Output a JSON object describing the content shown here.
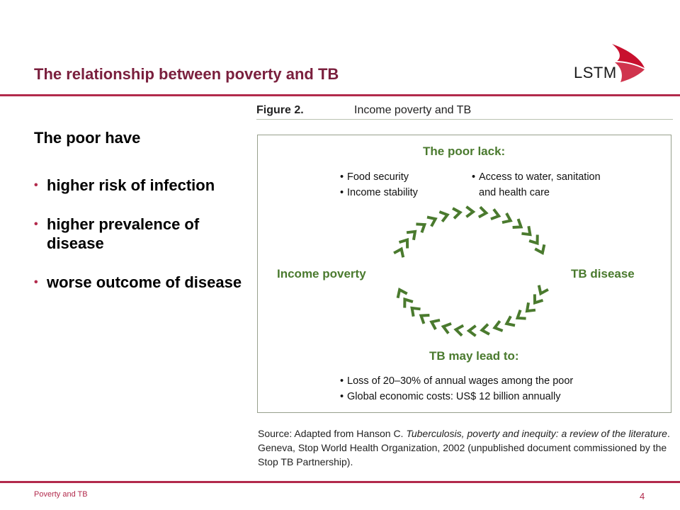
{
  "slide": {
    "title": "The relationship between poverty and TB",
    "logo_text": "LSTM",
    "footer": "Poverty and TB",
    "page_number": "4"
  },
  "left": {
    "lead": "The poor have",
    "bullets": [
      "higher risk of infection",
      "higher prevalence of disease",
      "worse outcome of disease"
    ]
  },
  "figure": {
    "label": "Figure 2.",
    "title": "Income poverty and TB",
    "poor_lack": {
      "heading": "The poor lack:",
      "left_items": [
        "Food security",
        "Income stability"
      ],
      "right_items": [
        "Access to water, sanitation",
        "and health care"
      ]
    },
    "node_left": "Income poverty",
    "node_right": "TB disease",
    "tb_leads": {
      "heading": "TB may lead to:",
      "items": [
        "Loss of 20–30% of annual wages among the poor",
        "Global economic costs: US$ 12 billion annually"
      ]
    },
    "arrow_color": "#4a7a2e"
  },
  "source": {
    "prefix": "Source: Adapted from Hanson C. ",
    "title_italic": "Tuberculosis, poverty and inequity: a review of the literature",
    "suffix": ". Geneva, Stop World Health Organization, 2002 (unpublished document commissioned by the Stop TB Partnership)."
  },
  "colors": {
    "accent": "#b22a4c",
    "title": "#7a1f3d",
    "diagram_green": "#4a7a2e"
  }
}
